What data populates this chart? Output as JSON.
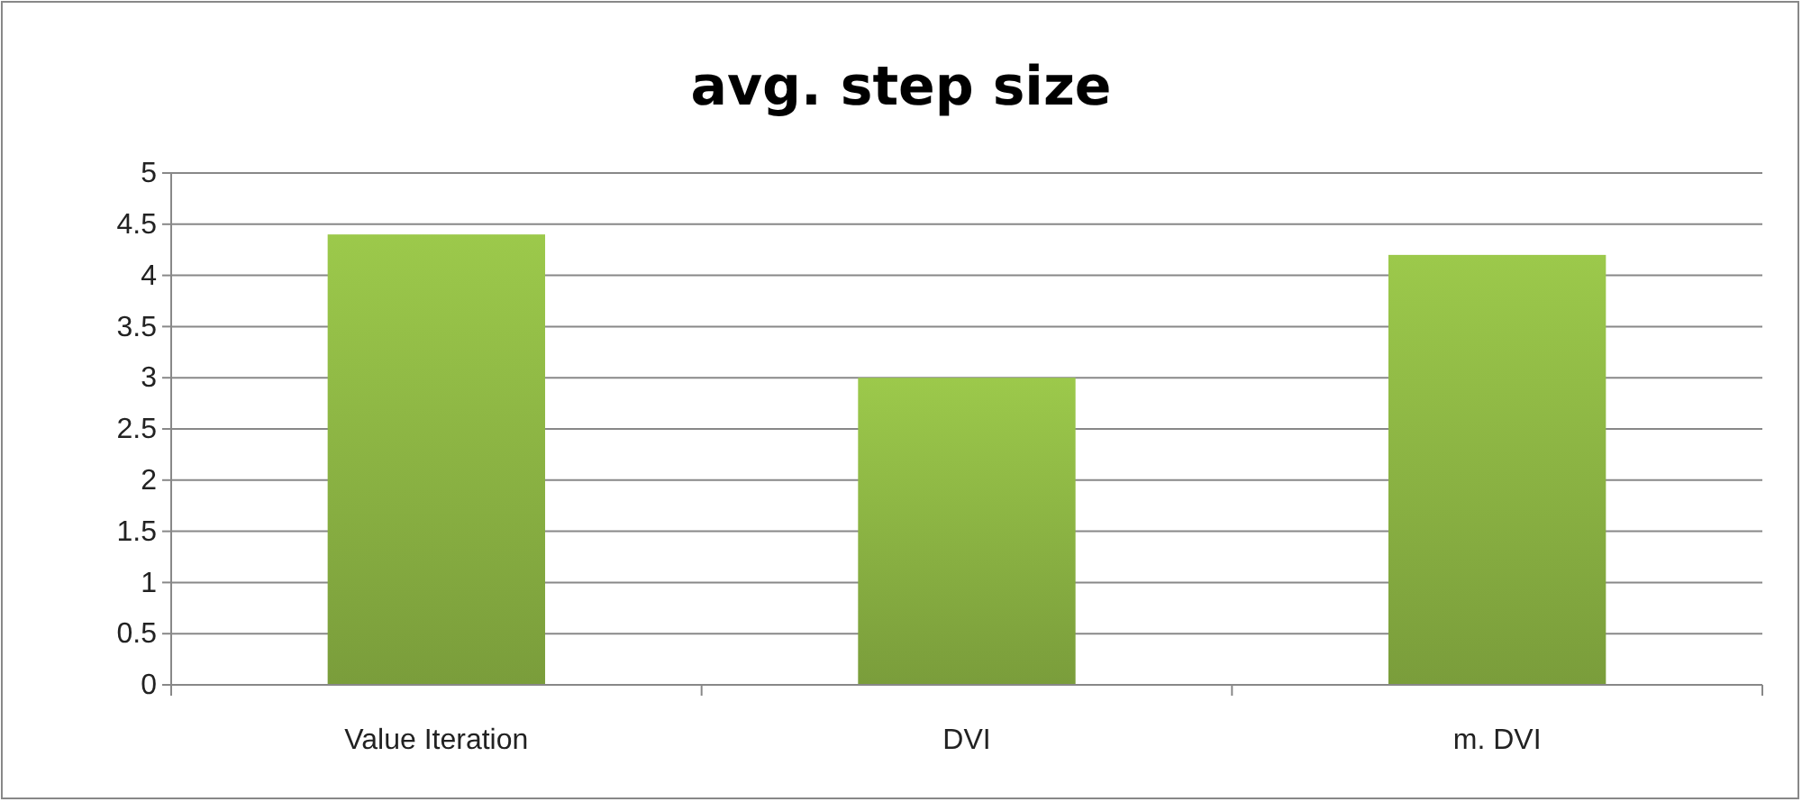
{
  "chart_data": {
    "type": "bar",
    "title": "avg. step size",
    "categories": [
      "Value Iteration",
      "DVI",
      "m. DVI"
    ],
    "values": [
      4.4,
      3.0,
      4.2
    ],
    "color": "#8fb845",
    "ylim": [
      0,
      5
    ],
    "yticks": [
      0,
      0.5,
      1,
      1.5,
      2,
      2.5,
      3,
      3.5,
      4,
      4.5,
      5
    ],
    "grid": "y"
  }
}
